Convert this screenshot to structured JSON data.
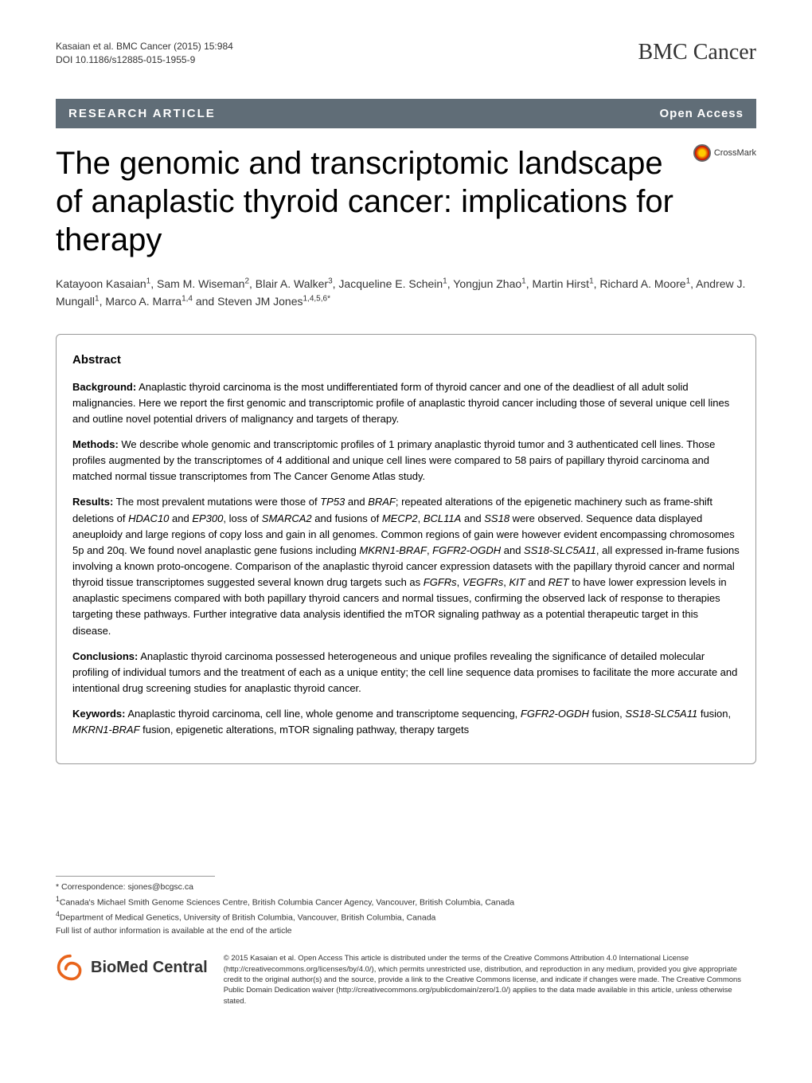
{
  "header": {
    "citation_line1": "Kasaian et al. BMC Cancer  (2015) 15:984",
    "citation_line2": "DOI 10.1186/s12885-015-1955-9",
    "journal": "BMC Cancer"
  },
  "bar": {
    "article_type": "RESEARCH ARTICLE",
    "open_access": "Open Access"
  },
  "title": "The genomic and transcriptomic landscape of anaplastic thyroid cancer: implications for therapy",
  "crossmark_label": "CrossMark",
  "authors_html": "Katayoon Kasaian<sup>1</sup>, Sam M. Wiseman<sup>2</sup>, Blair A. Walker<sup>3</sup>, Jacqueline E. Schein<sup>1</sup>, Yongjun Zhao<sup>1</sup>, Martin Hirst<sup>1</sup>, Richard A. Moore<sup>1</sup>, Andrew J. Mungall<sup>1</sup>, Marco A. Marra<sup>1,4</sup> and Steven JM Jones<sup>1,4,5,6*</sup>",
  "abstract": {
    "heading": "Abstract",
    "background_label": "Background:",
    "background_text": " Anaplastic thyroid carcinoma is the most undifferentiated form of thyroid cancer and one of the deadliest of all adult solid malignancies. Here we report the first genomic and transcriptomic profile of anaplastic thyroid cancer including those of several unique cell lines and outline novel potential drivers of malignancy and targets of therapy.",
    "methods_label": "Methods:",
    "methods_text": " We describe whole genomic and transcriptomic profiles of 1 primary anaplastic thyroid tumor and 3 authenticated cell lines. Those profiles augmented by the transcriptomes of 4 additional and unique cell lines were compared to 58 pairs of papillary thyroid carcinoma and matched normal tissue transcriptomes from The Cancer Genome Atlas study.",
    "results_label": "Results:",
    "results_text": " The most prevalent mutations were those of TP53 and BRAF; repeated alterations of the epigenetic machinery such as frame-shift deletions of HDAC10 and EP300, loss of SMARCA2 and fusions of MECP2, BCL11A and SS18 were observed. Sequence data displayed aneuploidy and large regions of copy loss and gain in all genomes. Common regions of gain were however evident encompassing chromosomes 5p and 20q. We found novel anaplastic gene fusions including MKRN1-BRAF, FGFR2-OGDH and SS18-SLC5A11, all expressed in-frame fusions involving a known proto-oncogene. Comparison of the anaplastic thyroid cancer expression datasets with the papillary thyroid cancer and normal thyroid tissue transcriptomes suggested several known drug targets such as FGFRs, VEGFRs, KIT and RET to have lower expression levels in anaplastic specimens compared with both papillary thyroid cancers and normal tissues, confirming the observed lack of response to therapies targeting these pathways. Further integrative data analysis identified the mTOR signaling pathway as a potential therapeutic target in this disease.",
    "conclusions_label": "Conclusions:",
    "conclusions_text": " Anaplastic thyroid carcinoma possessed heterogeneous and unique profiles revealing the significance of detailed molecular profiling of individual tumors and the treatment of each as a unique entity; the cell line sequence data promises to facilitate the more accurate and intentional drug screening studies for anaplastic thyroid cancer.",
    "keywords_label": "Keywords:",
    "keywords_text": " Anaplastic thyroid carcinoma, cell line, whole genome and transcriptome sequencing, FGFR2-OGDH fusion, SS18-SLC5A11 fusion, MKRN1-BRAF fusion, epigenetic alterations, mTOR signaling pathway, therapy targets"
  },
  "footer": {
    "correspondence": "* Correspondence: sjones@bcgsc.ca",
    "affil1": "1Canada's Michael Smith Genome Sciences Centre, British Columbia Cancer Agency, Vancouver, British Columbia, Canada",
    "affil4": "4Department of Medical Genetics, University of British Columbia, Vancouver, British Columbia, Canada",
    "full_list": "Full list of author information is available at the end of the article",
    "bmc_logo_text": "BioMed Central",
    "license": "© 2015 Kasaian et al. Open Access This article is distributed under the terms of the Creative Commons Attribution 4.0 International License (http://creativecommons.org/licenses/by/4.0/), which permits unrestricted use, distribution, and reproduction in any medium, provided you give appropriate credit to the original author(s) and the source, provide a link to the Creative Commons license, and indicate if changes were made. The Creative Commons Public Domain Dedication waiver (http://creativecommons.org/publicdomain/zero/1.0/) applies to the data made available in this article, unless otherwise stated."
  },
  "colors": {
    "bar_bg": "#606d77",
    "bar_text": "#ffffff",
    "body_text": "#000000",
    "border": "#999999"
  }
}
